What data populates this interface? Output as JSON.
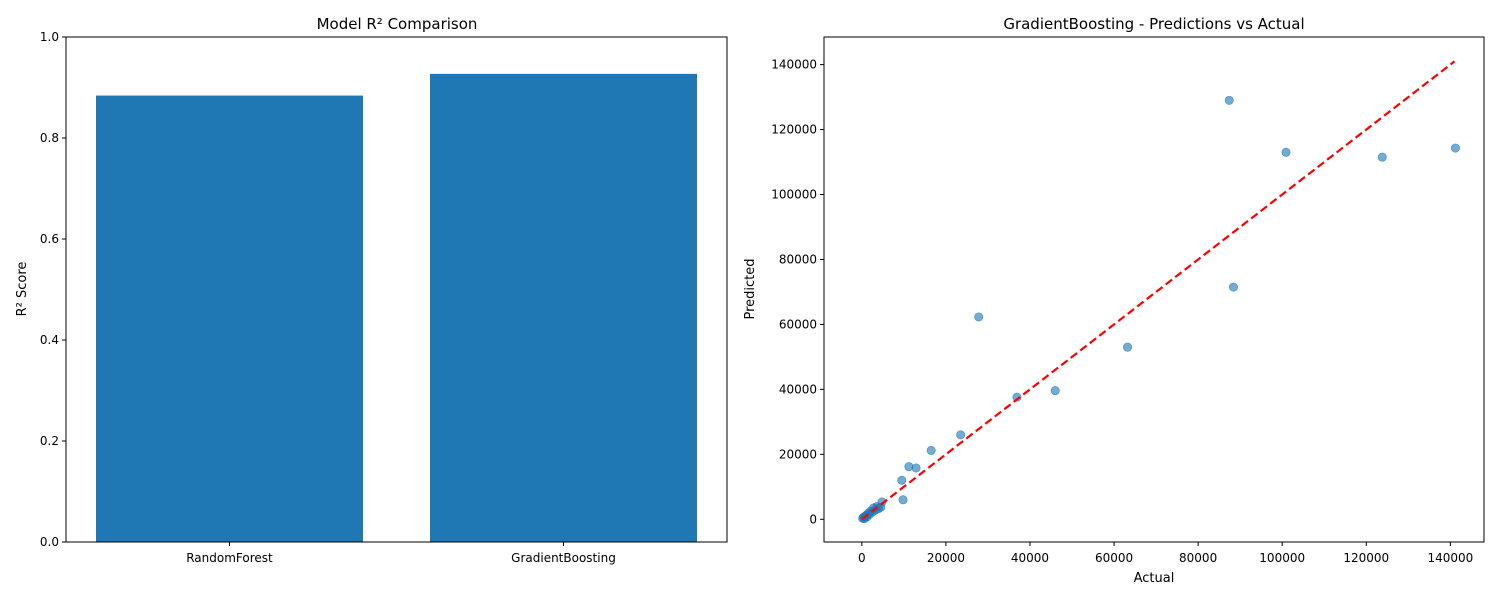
{
  "chart_data": [
    {
      "type": "bar",
      "title": "Model R² Comparison",
      "xlabel": "",
      "ylabel": "R² Score",
      "categories": [
        "RandomForest",
        "GradientBoosting"
      ],
      "values": [
        0.884,
        0.927
      ],
      "ylim": [
        0,
        1.0
      ],
      "yticks": [
        "0.0",
        "0.2",
        "0.4",
        "0.6",
        "0.8",
        "1.0"
      ],
      "color": "#1f77b4",
      "grid": false
    },
    {
      "type": "scatter",
      "title": "GradientBoosting - Predictions vs Actual",
      "xlabel": "Actual",
      "ylabel": "Predicted",
      "xlim": [
        -9000,
        148000
      ],
      "ylim": [
        -7000,
        148500
      ],
      "xticks": [
        "0",
        "20000",
        "40000",
        "60000",
        "80000",
        "100000",
        "120000",
        "140000"
      ],
      "yticks": [
        "0",
        "20000",
        "40000",
        "60000",
        "80000",
        "100000",
        "120000",
        "140000"
      ],
      "point_color": "#1f77b4",
      "reference_line": {
        "from": [
          0,
          0
        ],
        "to": [
          141000,
          141000
        ],
        "color": "#ff0000",
        "style": "dashed"
      },
      "grid": false,
      "points": [
        {
          "x": 200,
          "y": 300
        },
        {
          "x": 400,
          "y": 600
        },
        {
          "x": 600,
          "y": 200
        },
        {
          "x": 800,
          "y": 900
        },
        {
          "x": 1000,
          "y": 1200
        },
        {
          "x": 1200,
          "y": 700
        },
        {
          "x": 1500,
          "y": 1800
        },
        {
          "x": 1800,
          "y": 1500
        },
        {
          "x": 2100,
          "y": 2500
        },
        {
          "x": 2500,
          "y": 2200
        },
        {
          "x": 2800,
          "y": 3500
        },
        {
          "x": 3200,
          "y": 2800
        },
        {
          "x": 3600,
          "y": 3900
        },
        {
          "x": 4000,
          "y": 3300
        },
        {
          "x": 4500,
          "y": 3700
        },
        {
          "x": 4800,
          "y": 5300
        },
        {
          "x": 9500,
          "y": 12000
        },
        {
          "x": 9800,
          "y": 6000
        },
        {
          "x": 11200,
          "y": 16200
        },
        {
          "x": 12900,
          "y": 15800
        },
        {
          "x": 16500,
          "y": 21200
        },
        {
          "x": 23500,
          "y": 26000
        },
        {
          "x": 27800,
          "y": 62300
        },
        {
          "x": 36900,
          "y": 37600
        },
        {
          "x": 46000,
          "y": 39600
        },
        {
          "x": 63200,
          "y": 53000
        },
        {
          "x": 87400,
          "y": 129000
        },
        {
          "x": 88400,
          "y": 71500
        },
        {
          "x": 100900,
          "y": 113000
        },
        {
          "x": 123800,
          "y": 111500
        },
        {
          "x": 141200,
          "y": 114300
        }
      ]
    }
  ]
}
